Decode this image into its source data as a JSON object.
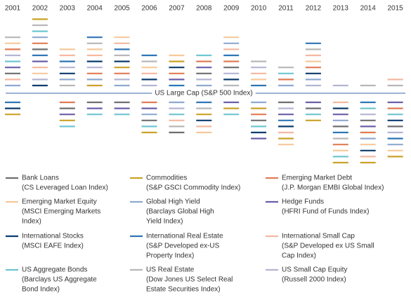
{
  "chart_data": {
    "type": "relative-dash",
    "baseline_label": "US Large Cap (S&P 500 Index)",
    "categories": [
      "2001",
      "2002",
      "2003",
      "2004",
      "2005",
      "2006",
      "2007",
      "2008",
      "2009",
      "2010",
      "2011",
      "2012",
      "2013",
      "2014",
      "2015"
    ],
    "series": [
      {
        "name": "Bank Loans",
        "index_lines": [
          "(CS Leveraged Loan Index)"
        ],
        "color": "#6d6e71",
        "values": [
          3,
          7,
          -2,
          -1,
          -1,
          -4,
          -6,
          3,
          4,
          -4,
          -1,
          -2,
          -5,
          -4,
          -5
        ]
      },
      {
        "name": "Commodities",
        "index_lines": [
          "(S&P GSCI Commodity Index)"
        ],
        "color": "#c9a227",
        "values": [
          -3,
          12,
          -4,
          1,
          4,
          -6,
          5,
          -3,
          -2,
          -2,
          -7,
          -4,
          -11,
          -11,
          -10
        ]
      },
      {
        "name": "Emerging Market Debt",
        "index_lines": [
          "(J.P. Morgan EMBI Global Index)"
        ],
        "color": "#e07b54",
        "values": [
          7,
          8,
          -1,
          3,
          3,
          -1,
          3,
          5,
          5,
          -3,
          2,
          4,
          -8,
          -6,
          -2
        ]
      },
      {
        "name": "Emerging Market Equity",
        "index_lines": [
          "(MSCI Emerging Markets",
          "Index)"
        ],
        "color": "#f5c99b",
        "values": [
          8,
          3,
          7,
          7,
          9,
          4,
          6,
          -6,
          9,
          2,
          -8,
          5,
          -9,
          -8,
          -9
        ]
      },
      {
        "name": "Global High Yield",
        "index_lines": [
          "(Barclays Global High",
          "Yield Index)"
        ],
        "color": "#8ea9cf",
        "values": [
          1,
          9,
          2,
          2,
          1,
          -3,
          -1,
          1,
          8,
          -1,
          1,
          2,
          -4,
          -7,
          -8
        ]
      },
      {
        "name": "Hedge Funds",
        "index_lines": [
          "(HFRI Fund of Funds Index)"
        ],
        "color": "#6b5ea8",
        "values": [
          4,
          5,
          -3,
          -2,
          -2,
          -2,
          2,
          4,
          -1,
          -7,
          -3,
          -1,
          -3,
          -5,
          -1
        ]
      },
      {
        "name": "International Stocks",
        "index_lines": [
          "(MSCI EAFE Index)"
        ],
        "color": "#0b3c6e",
        "values": [
          -2,
          1,
          3,
          5,
          5,
          2,
          4,
          -4,
          2,
          -6,
          -5,
          3,
          -2,
          -9,
          -4
        ]
      },
      {
        "name": "International Real Estate",
        "index_lines": [
          "(S&P Developed ex-US",
          "Property Index)"
        ],
        "color": "#2e75b6",
        "values": [
          -1,
          6,
          5,
          9,
          7,
          6,
          1,
          -1,
          6,
          1,
          -4,
          8,
          -6,
          -1,
          -7
        ]
      },
      {
        "name": "International Small Cap",
        "index_lines": [
          "(S&P Developed ex US Small",
          "Cap Index)"
        ],
        "color": "#f4b8a0",
        "values": [
          2,
          4,
          6,
          6,
          8,
          3,
          -4,
          -5,
          7,
          3,
          -6,
          6,
          -1,
          -10,
          2
        ]
      },
      {
        "name": "US Aggregate Bonds",
        "index_lines": [
          "(Barclays US Aggregate",
          "Bond Index)"
        ],
        "color": "#6ec6d0",
        "values": [
          5,
          10,
          -5,
          -3,
          -3,
          -5,
          -3,
          6,
          -3,
          -5,
          3,
          -3,
          -10,
          -2,
          -3
        ]
      },
      {
        "name": "US Real Estate",
        "index_lines": [
          "(Dow Jones US Select Real",
          "Estate Securities Index)"
        ],
        "color": "#b7b7b7",
        "values": [
          9,
          11,
          1,
          8,
          6,
          5,
          -5,
          -2,
          1,
          5,
          4,
          7,
          -7,
          1,
          1
        ]
      },
      {
        "name": "US Small Cap Equity",
        "index_lines": [
          "(Russell 2000 Index)"
        ],
        "color": "#b4b4d4",
        "values": [
          6,
          2,
          4,
          4,
          2,
          1,
          -2,
          2,
          3,
          4,
          -2,
          1,
          1,
          -3,
          -6
        ]
      }
    ],
    "baseline_color": "#7a9cc6"
  }
}
